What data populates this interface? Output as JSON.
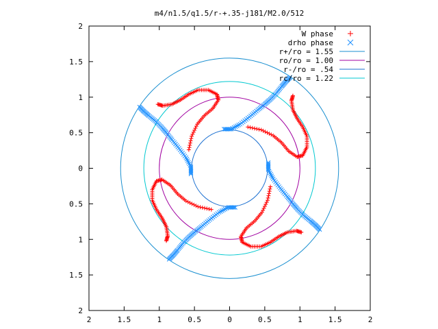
{
  "chart_data": {
    "type": "scatter",
    "title": "m4/n1.5/q1.5/r-+.35-j181/M2.0/512",
    "xlabel": "",
    "ylabel": "",
    "xlim": [
      -2,
      2
    ],
    "ylim": [
      -2,
      2
    ],
    "x_ticks": [
      -2,
      -1.5,
      -1,
      -0.5,
      0,
      0.5,
      1,
      1.5,
      2
    ],
    "y_ticks": [
      -2,
      -1.5,
      -1,
      -0.5,
      0,
      0.5,
      1,
      1.5,
      2
    ],
    "x_tick_labels": [
      "2",
      "1.5",
      "1",
      "0.5",
      "0",
      "0.5",
      "1",
      "1.5",
      "2"
    ],
    "y_tick_labels": [
      "2",
      "1.5",
      "1",
      "0.5",
      "0",
      "0.5",
      "1",
      "1.5",
      "2"
    ],
    "grid": false,
    "legend_position": "top-right",
    "symmetry_arms": 4,
    "series": [
      {
        "name": "W phase",
        "marker": "plus",
        "color": "#ff0000",
        "arm_points": [
          [
            0.26,
            0.58
          ],
          [
            0.45,
            0.54
          ],
          [
            0.62,
            0.46
          ],
          [
            0.74,
            0.36
          ],
          [
            0.84,
            0.24
          ],
          [
            0.96,
            0.16
          ],
          [
            1.04,
            0.18
          ],
          [
            1.1,
            0.3
          ],
          [
            1.1,
            0.45
          ],
          [
            1.04,
            0.58
          ],
          [
            0.96,
            0.7
          ],
          [
            0.9,
            0.82
          ],
          [
            0.88,
            0.95
          ],
          [
            0.9,
            1.02
          ]
        ]
      },
      {
        "name": "drho phase",
        "marker": "cross",
        "color": "#1e90ff",
        "arm_points": [
          [
            0.55,
            0.08
          ],
          [
            0.55,
            -0.02
          ],
          [
            0.62,
            -0.15
          ],
          [
            0.72,
            -0.28
          ],
          [
            0.82,
            -0.4
          ],
          [
            0.9,
            -0.5
          ],
          [
            0.97,
            -0.58
          ],
          [
            1.05,
            -0.66
          ],
          [
            1.15,
            -0.74
          ],
          [
            1.22,
            -0.8
          ],
          [
            1.28,
            -0.86
          ]
        ]
      }
    ],
    "circles": [
      {
        "name": "r+/ro = 1.55",
        "radius": 1.55,
        "color": "#1a8fd0"
      },
      {
        "name": "ro/ro = 1.00",
        "radius": 1.0,
        "color": "#a000a0"
      },
      {
        "name": "r-/ro = .54",
        "radius": 0.54,
        "color": "#1a6fd0"
      },
      {
        "name": "rc/ro = 1.22",
        "radius": 1.22,
        "color": "#00c8d0"
      }
    ]
  }
}
